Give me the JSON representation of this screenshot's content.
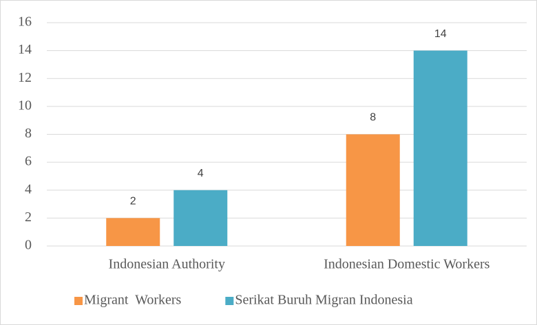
{
  "chart_data": {
    "type": "bar",
    "categories": [
      "Indonesian Authority",
      "Indonesian Domestic Workers"
    ],
    "series": [
      {
        "name": "Migrant  Workers",
        "color": "#f79646",
        "values": [
          2,
          8
        ]
      },
      {
        "name": "Serikat Buruh Migran Indonesia",
        "color": "#4bacc6",
        "values": [
          4,
          14
        ]
      }
    ],
    "ylim": [
      0,
      16
    ],
    "yticks": [
      0,
      2,
      4,
      6,
      8,
      10,
      12,
      14,
      16
    ],
    "grid": true,
    "legend": "bottom"
  }
}
